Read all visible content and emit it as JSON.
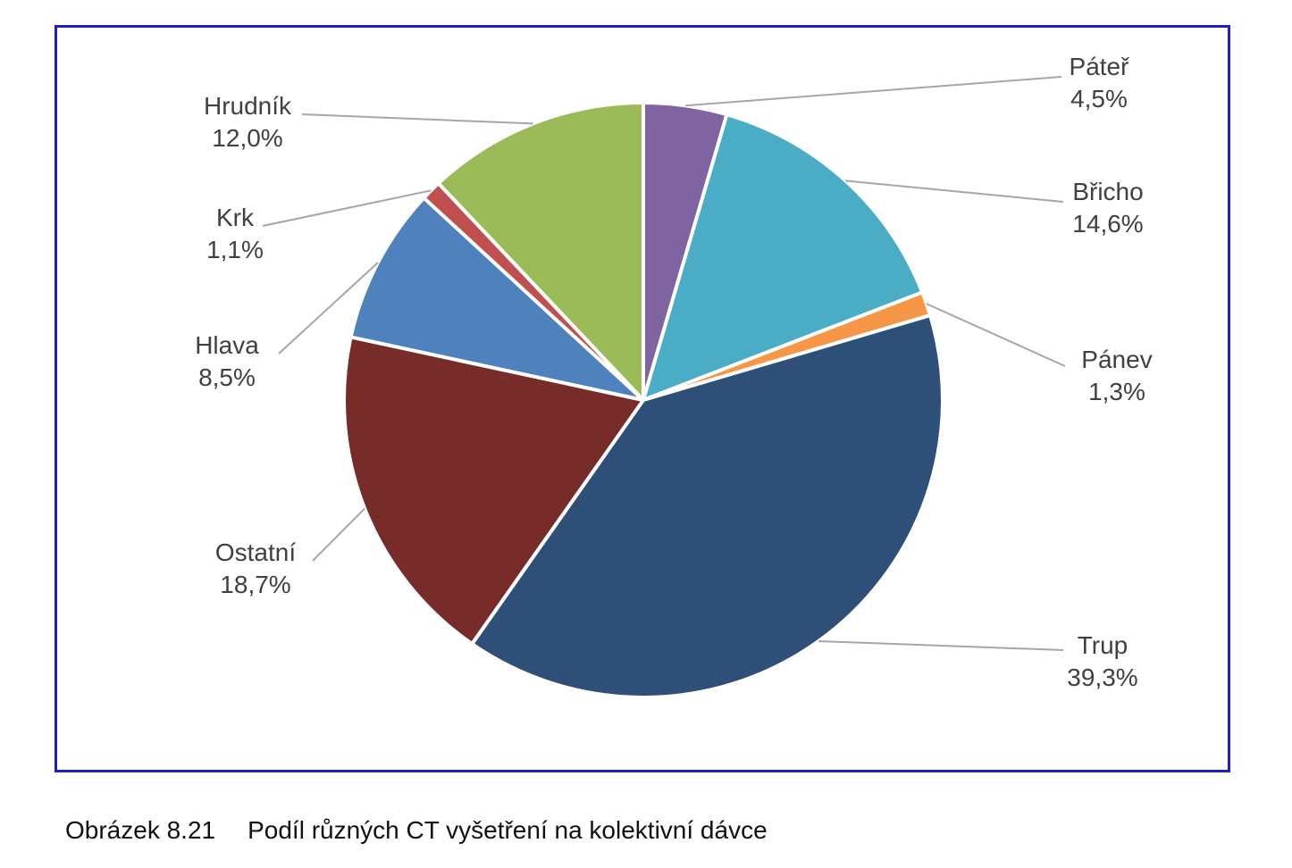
{
  "chart_data": {
    "type": "pie",
    "slices": [
      {
        "label": "Páteř",
        "value": 4.5,
        "text": "4,5%",
        "color": "#8064a2"
      },
      {
        "label": "Břicho",
        "value": 14.6,
        "text": "14,6%",
        "color": "#4bacc6"
      },
      {
        "label": "Pánev",
        "value": 1.3,
        "text": "1,3%",
        "color": "#f79646"
      },
      {
        "label": "Trup",
        "value": 39.3,
        "text": "39,3%",
        "color": "#2e4f78"
      },
      {
        "label": "Ostatní",
        "value": 18.7,
        "text": "18,7%",
        "color": "#772c2a"
      },
      {
        "label": "Hlava",
        "value": 8.5,
        "text": "8,5%",
        "color": "#4f81bd"
      },
      {
        "label": "Krk",
        "value": 1.1,
        "text": "1,1%",
        "color": "#c0504d"
      },
      {
        "label": "Hrudník",
        "value": 12.0,
        "text": "12,0%",
        "color": "#9bbb59"
      }
    ],
    "start_direction": "top",
    "direction": "clockwise",
    "legend": "none",
    "data_labels": "outside with leader lines"
  },
  "caption": {
    "figure": "Obrázek 8.21",
    "text": "Podíl různých CT vyšetření na kolektivní dávce"
  }
}
